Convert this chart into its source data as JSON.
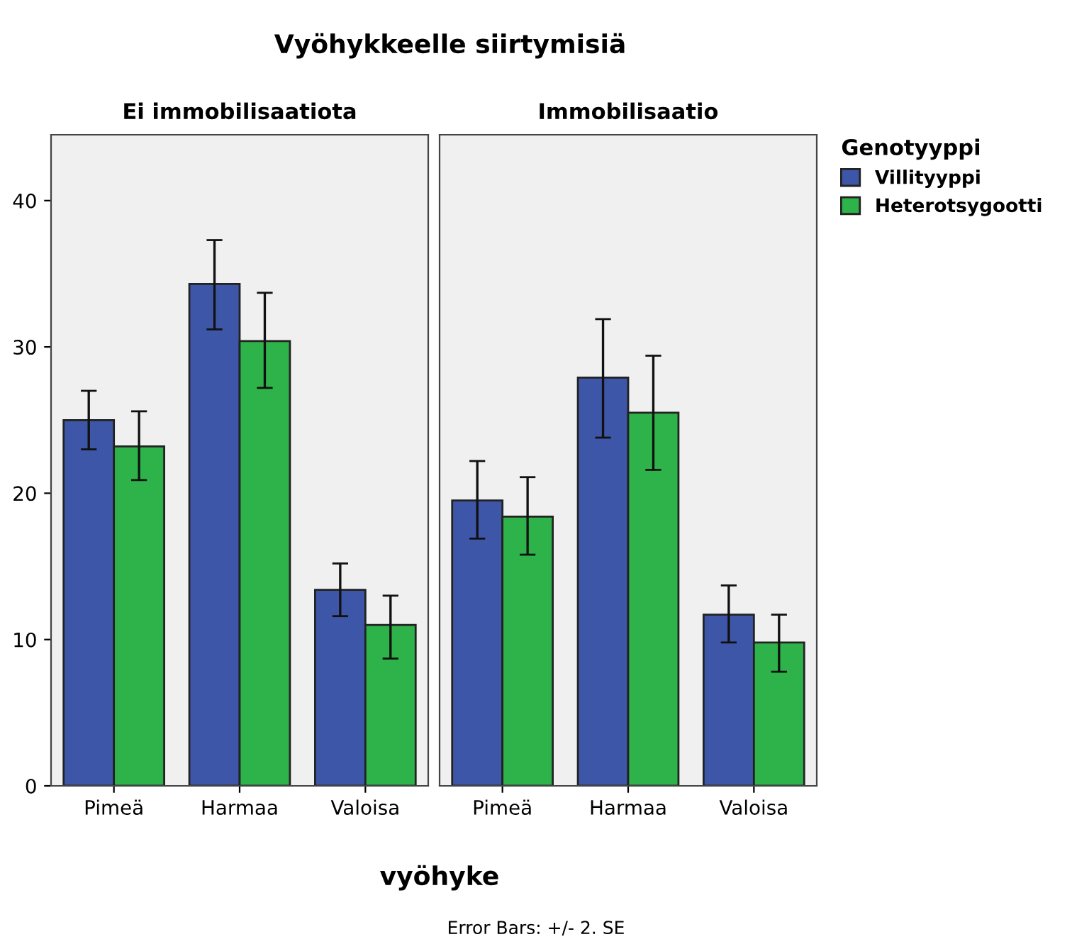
{
  "chart_data": [
    {
      "type": "bar",
      "title": "Vyöhykkeelle siirtymisiä",
      "subtitle": "Ei immobilisaatiota",
      "xlabel": "vyöhyke",
      "annotations": [
        "Error Bars: +/- 2. SE"
      ],
      "categories": [
        "Pimeä",
        "Harmaa",
        "Valoisa"
      ],
      "ylim": [
        0,
        44.5
      ],
      "yticks": [
        0,
        10,
        20,
        30,
        40
      ],
      "grid": false,
      "series": [
        {
          "color": "#3e56a8",
          "values": [
            25.0,
            34.3,
            13.4
          ],
          "errors": [
            [
              23.0,
              27.0
            ],
            [
              31.2,
              37.3
            ],
            [
              11.6,
              15.2
            ]
          ]
        },
        {
          "color": "#2eb34a",
          "values": [
            23.2,
            30.4,
            11.0
          ],
          "errors": [
            [
              20.9,
              25.6
            ],
            [
              27.2,
              33.7
            ],
            [
              8.7,
              13.0
            ]
          ]
        }
      ]
    },
    {
      "type": "bar",
      "subtitle": "Immobilisaatio",
      "categories": [
        "Pimeä",
        "Harmaa",
        "Valoisa"
      ],
      "ylim": [
        0,
        44.5
      ],
      "yticks": [
        0,
        10,
        20,
        30,
        40
      ],
      "tick_labels": "x",
      "grid": false,
      "legend": "right",
      "legend_title": "Genotyyppi",
      "series": [
        {
          "name": "Villityyppi",
          "color": "#3e56a8",
          "values": [
            19.5,
            27.9,
            11.7
          ],
          "errors": [
            [
              16.9,
              22.2
            ],
            [
              23.8,
              31.9
            ],
            [
              9.8,
              13.7
            ]
          ]
        },
        {
          "name": "Heterotsygootti",
          "color": "#2eb34a",
          "values": [
            18.4,
            25.5,
            9.8
          ],
          "errors": [
            [
              15.8,
              21.1
            ],
            [
              21.6,
              29.4
            ],
            [
              7.8,
              11.7
            ]
          ]
        }
      ]
    }
  ]
}
